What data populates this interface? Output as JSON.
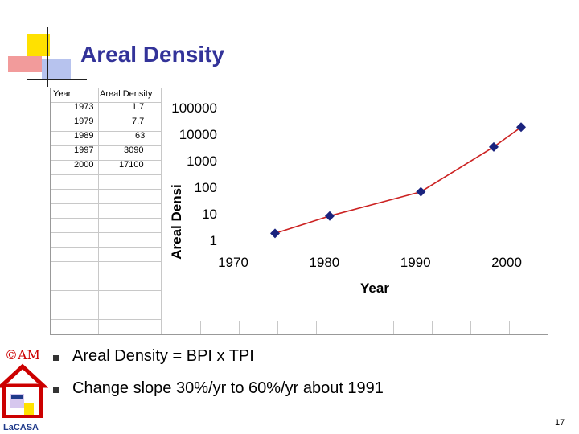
{
  "slide": {
    "title": "Areal Density",
    "page_number": "17",
    "bullets": [
      "Areal Density = BPI x TPI",
      "Change slope 30%/yr to 60%/yr about 1991"
    ]
  },
  "logo": {
    "am_text": "©AM",
    "casa_text": "LaCASA"
  },
  "table": {
    "headers": [
      "Year",
      "Areal Density"
    ],
    "rows": [
      [
        "1973",
        "1.7"
      ],
      [
        "1979",
        "7.7"
      ],
      [
        "1989",
        "63"
      ],
      [
        "1997",
        "3090"
      ],
      [
        "2000",
        "17100"
      ]
    ]
  },
  "chart_data": {
    "type": "scatter",
    "xlabel": "Year",
    "ylabel": "Areal Densi",
    "x": [
      1973,
      1979,
      1989,
      1997,
      2000
    ],
    "y": [
      1.7,
      7.7,
      63,
      3090,
      17100
    ],
    "xlim": [
      1970,
      2000
    ],
    "x_ticks": [
      "1970",
      "1980",
      "1990",
      "2000"
    ],
    "y_scale": "log",
    "y_ticks": [
      "1",
      "10",
      "100",
      "1000",
      "10000",
      "100000"
    ],
    "line_color": "#cc2222",
    "marker_color": "#1a237e",
    "legend": "none",
    "grid": false
  }
}
